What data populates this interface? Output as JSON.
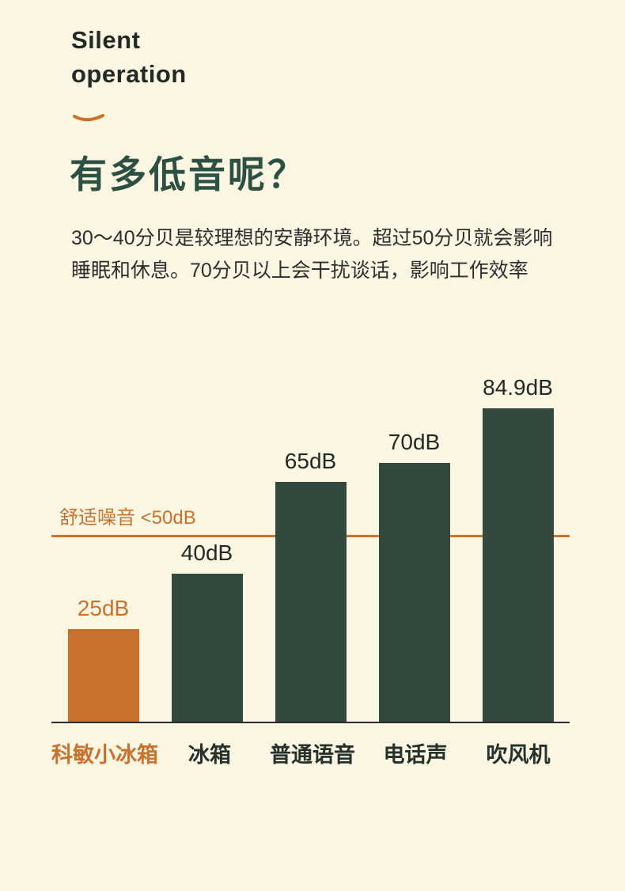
{
  "header": {
    "eyebrow": "Silent\noperation",
    "title": "有多低音呢？",
    "description": "30～40分贝是较理想的安静环境。超过50分贝就会影响睡眠和休息。70分贝以上会干扰谈话，影响工作效率"
  },
  "chart_data": {
    "type": "bar",
    "categories": [
      "科敏小冰箱",
      "冰箱",
      "普通语音",
      "电话声",
      "吹风机"
    ],
    "values": [
      25,
      40,
      65,
      70,
      84.9
    ],
    "value_labels": [
      "25dB",
      "40dB",
      "65dB",
      "70dB",
      "84.9dB"
    ],
    "threshold": {
      "value": 50,
      "label": "舒适噪音 <50dB"
    },
    "highlight_index": 0,
    "ylabel": "",
    "xlabel": "",
    "ylim": [
      0,
      90
    ],
    "grid": false,
    "legend": false,
    "colors": {
      "bar": "#33493E",
      "highlight": "#C8722E",
      "threshold_line": "#C8722E",
      "axis": "#2b2b2b"
    }
  },
  "colors": {
    "background": "#FBF6E1",
    "title": "#2D5044",
    "accent": "#C8722E",
    "text": "#232A26"
  }
}
